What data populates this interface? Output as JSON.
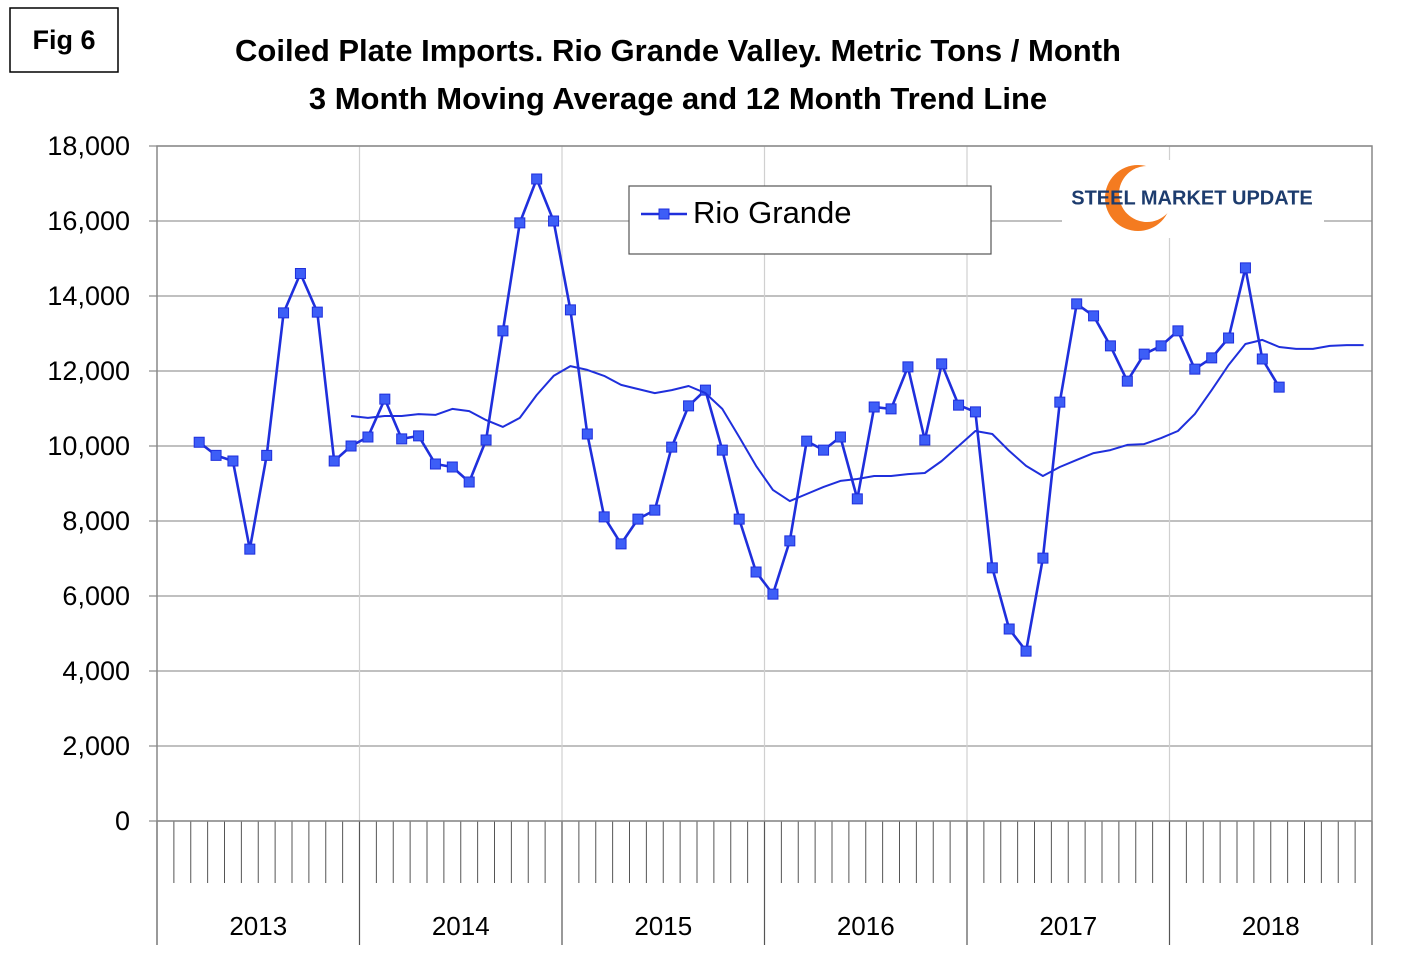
{
  "figure_label": "Fig 6",
  "logo_text": "STEEL MARKET UPDATE",
  "chart_data": {
    "type": "line",
    "title": "Coiled Plate Imports. Rio Grande Valley. Metric Tons / Month",
    "subtitle": "3 Month Moving Average and 12 Month Trend Line",
    "categories": [
      null,
      null,
      null,
      null,
      null,
      null,
      null,
      null,
      null,
      null,
      null,
      null,
      null,
      null,
      null,
      null,
      null,
      null,
      null,
      null,
      null,
      null,
      null,
      null,
      null,
      null,
      null,
      null,
      null,
      null,
      null,
      null,
      null,
      null,
      null,
      null,
      null,
      null,
      null,
      null,
      null,
      null,
      null,
      null,
      null,
      null,
      null,
      null,
      null,
      null,
      null,
      null,
      null,
      null,
      null,
      null,
      null,
      null,
      null,
      null,
      null,
      null,
      null,
      null,
      null,
      null,
      null,
      null,
      null,
      null,
      null,
      null
    ],
    "category_groups": [
      "2013",
      "2014",
      "2015",
      "2016",
      "2017",
      "2018"
    ],
    "series": [
      {
        "name": "Rio Grande",
        "color": "#1f2fdc",
        "marker": "square",
        "marker_color": "#3d5ef7",
        "values": [
          null,
          null,
          10100,
          9750,
          9600,
          7250,
          9750,
          13550,
          14600,
          13570,
          9600,
          10000,
          10240,
          11250,
          10190,
          10270,
          9520,
          9440,
          9040,
          10160,
          13070,
          15950,
          17120,
          16000,
          13630,
          10320,
          8110,
          7390,
          8050,
          8290,
          9970,
          11070,
          11490,
          9890,
          8050,
          6640,
          6050,
          7470,
          10130,
          9890,
          10240,
          8590,
          11040,
          10990,
          12110,
          10160,
          12190,
          11090,
          10910,
          6750,
          5120,
          4530,
          7010,
          11170,
          13790,
          13470,
          12670,
          11730,
          12450,
          12670,
          13070,
          12050,
          12350,
          12880,
          14750,
          12320,
          11570,
          null,
          null,
          null,
          null,
          null
        ]
      },
      {
        "color": "#1f2fdc",
        "values": [
          null,
          null,
          null,
          null,
          null,
          null,
          null,
          null,
          null,
          null,
          null,
          10800,
          10750,
          10800,
          10800,
          10850,
          10830,
          10990,
          10930,
          10690,
          10510,
          10750,
          11360,
          11870,
          12130,
          12030,
          11870,
          11630,
          11520,
          11410,
          11490,
          11600,
          11410,
          10990,
          10240,
          9470,
          8830,
          8530,
          8720,
          8910,
          9070,
          9120,
          9200,
          9200,
          9250,
          9280,
          9600,
          10000,
          10400,
          10320,
          9870,
          9470,
          9200,
          9440,
          9630,
          9810,
          9890,
          10030,
          10050,
          10210,
          10400,
          10850,
          11490,
          12160,
          12720,
          12830,
          12640,
          12590,
          12590,
          12670,
          12690,
          12690
        ]
      }
    ],
    "ylim": [
      0,
      18000
    ],
    "yticks": [
      0,
      {
        "value": 2000,
        "label": "2,000"
      },
      {
        "value": 4000,
        "label": "4,000"
      },
      {
        "value": 6000,
        "label": "6,000"
      },
      {
        "value": 8000,
        "label": "8,000"
      },
      {
        "value": 10000,
        "label": "10,000"
      },
      {
        "value": 12000,
        "label": "12,000"
      },
      {
        "value": 14000,
        "label": "14,000"
      },
      {
        "value": 16000,
        "label": "16,000"
      },
      {
        "value": 18000,
        "label": "18,000"
      }
    ],
    "grid": true
  }
}
